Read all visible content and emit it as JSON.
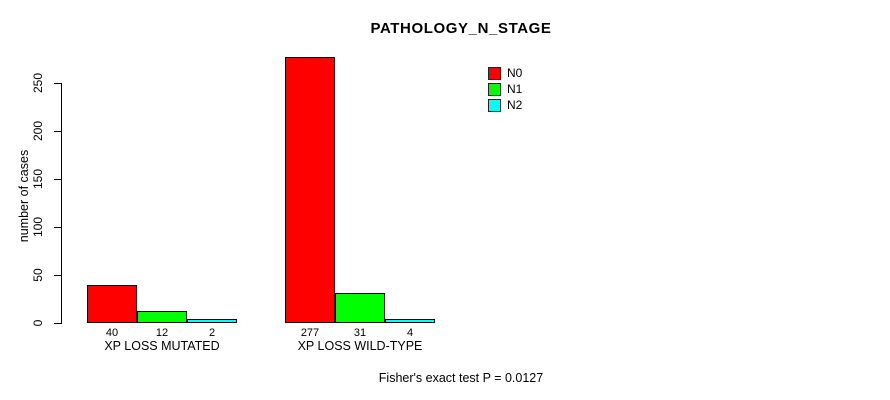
{
  "figure": {
    "background": "#ffffff",
    "axis_color": "#000000"
  },
  "chart_data": {
    "type": "bar",
    "title": "PATHOLOGY_N_STAGE",
    "ylabel": "number of cases",
    "xlabel": "",
    "categories": [
      "XP LOSS MUTATED",
      "XP LOSS WILD-TYPE"
    ],
    "series": [
      {
        "name": "N0",
        "color": "#ff0000",
        "values": [
          40,
          277
        ]
      },
      {
        "name": "N1",
        "color": "#00ff00",
        "values": [
          12,
          31
        ]
      },
      {
        "name": "N2",
        "color": "#00ffff",
        "values": [
          2,
          4
        ]
      }
    ],
    "yticks": [
      0,
      50,
      100,
      150,
      200,
      250
    ],
    "ylim": [
      0,
      290
    ],
    "grid": false,
    "legend": {
      "position": "top-right",
      "entries": [
        "N0",
        "N1",
        "N2"
      ]
    },
    "annotation": "Fisher's exact test P = 0.0127"
  }
}
